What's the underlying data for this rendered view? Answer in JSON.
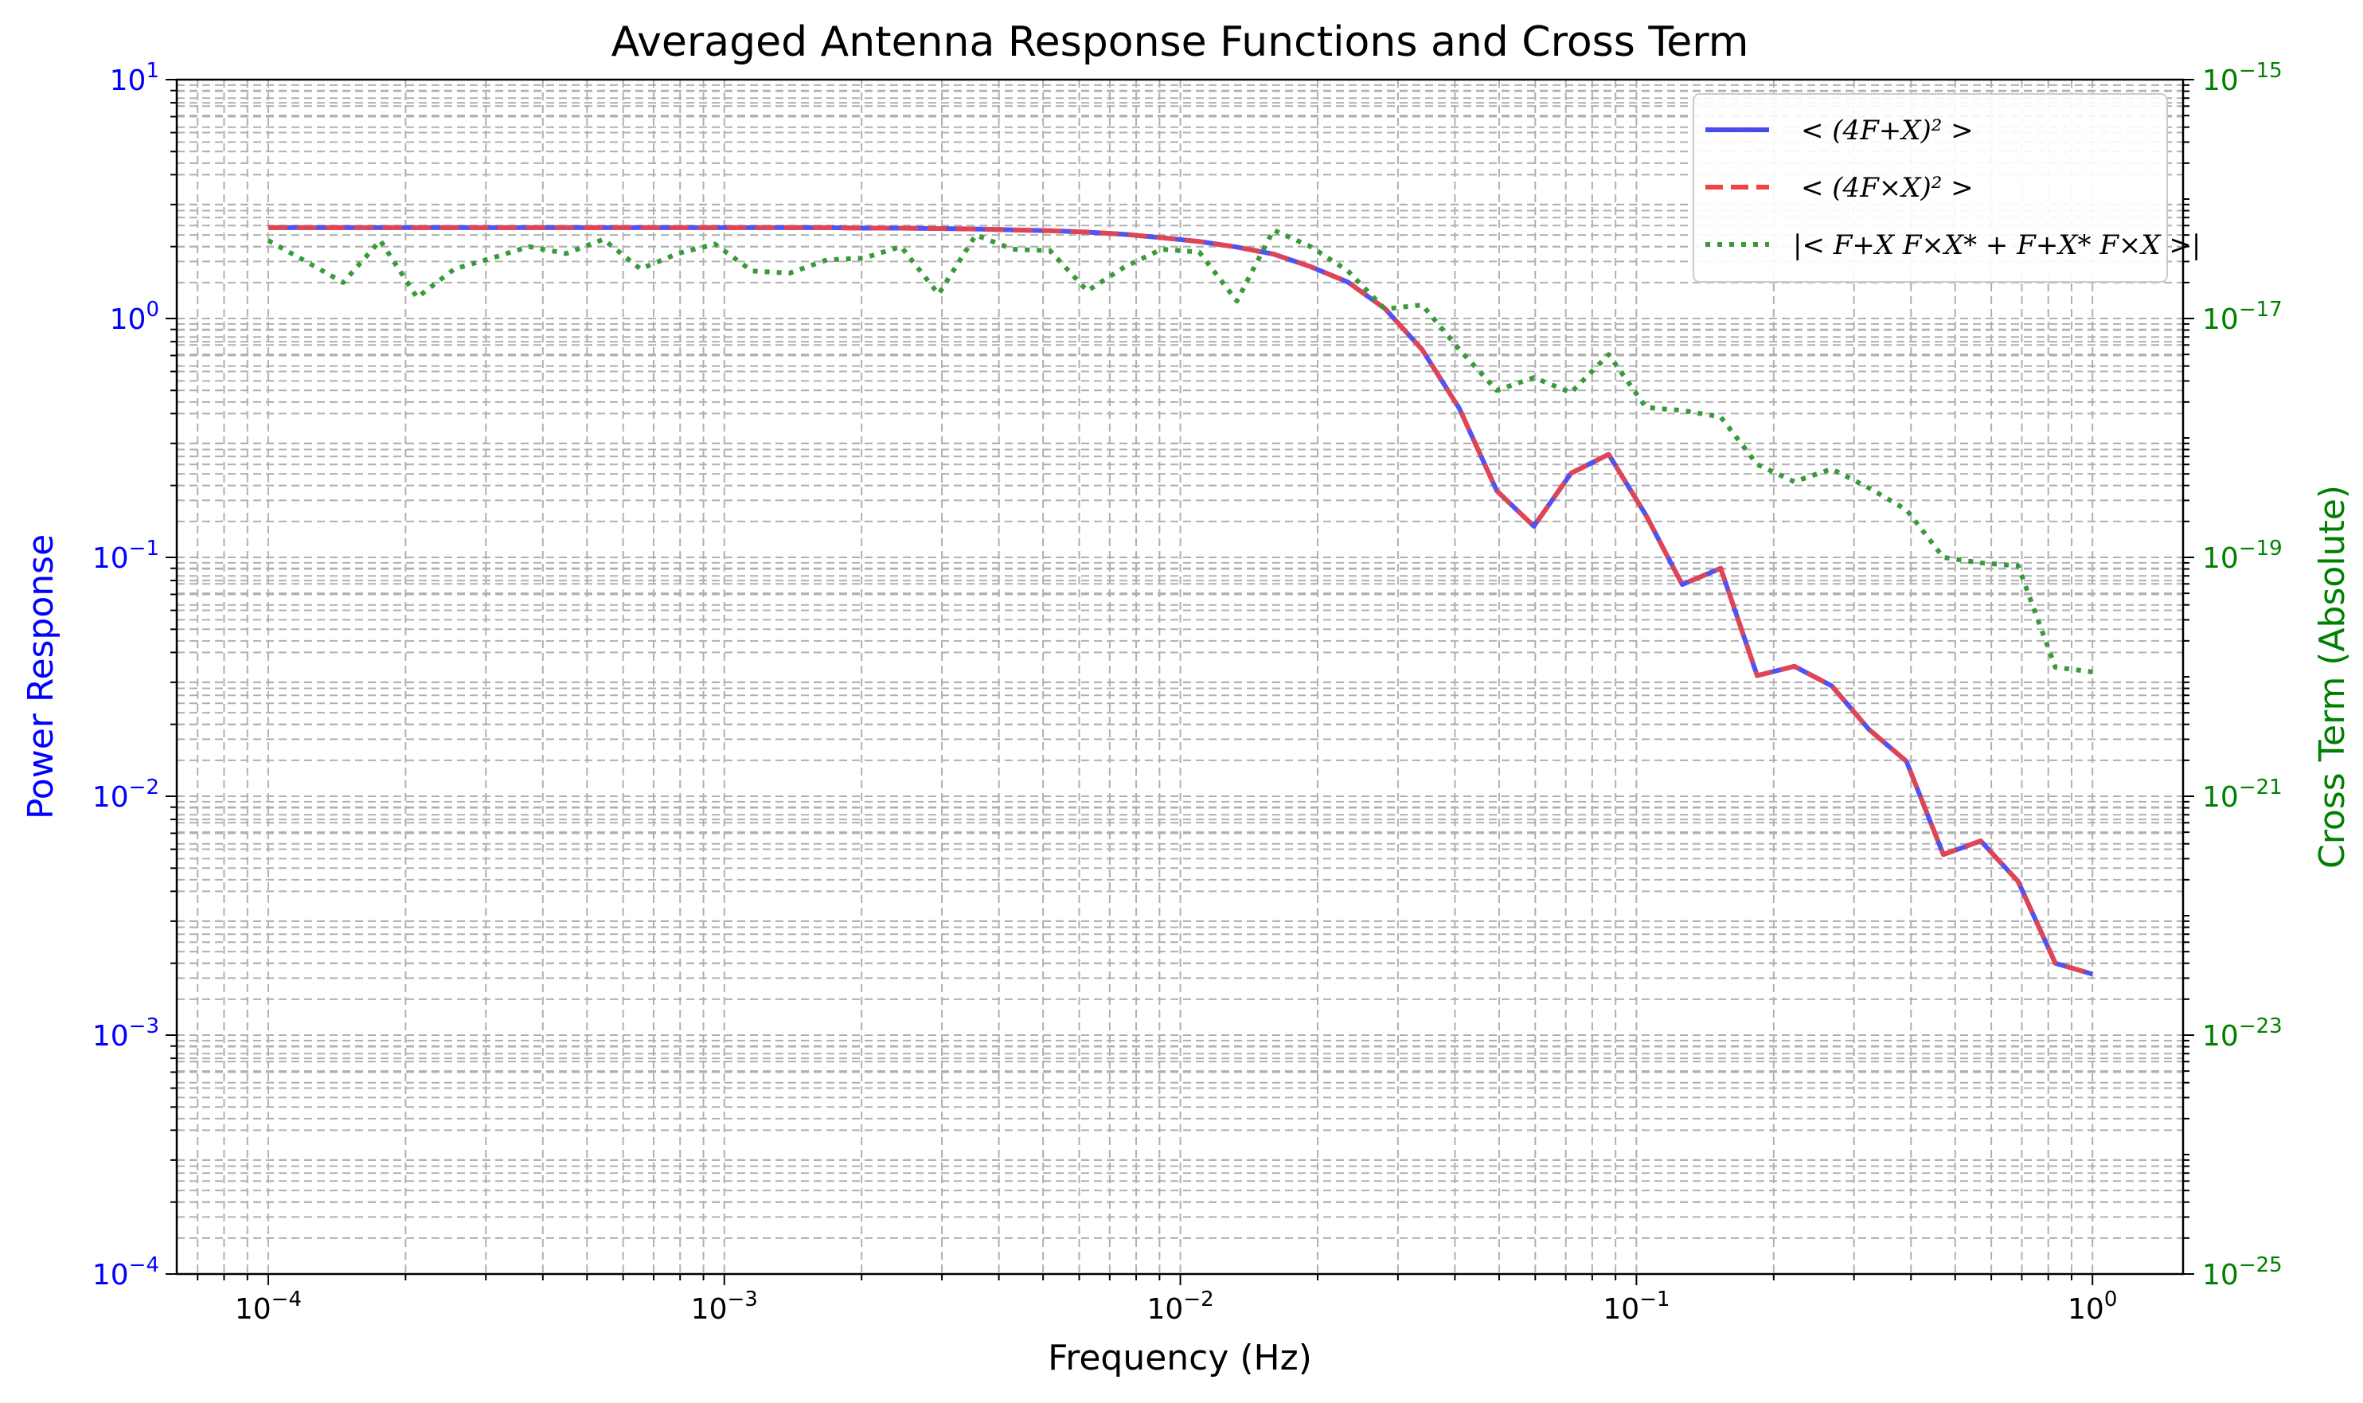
{
  "chart_data": {
    "type": "line",
    "title": "Averaged Antenna Response Functions and Cross Term",
    "xlabel": "Frequency (Hz)",
    "ylabel": "Power Response",
    "y2label": "Cross Term (Absolute)",
    "xscale": "log",
    "yscale": "log",
    "y2scale": "log",
    "xlim": [
      6.3e-05,
      1.58
    ],
    "ylim": [
      0.0001,
      10
    ],
    "y2lim": [
      1e-25,
      1e-15
    ],
    "grid": "major and minor, dashed",
    "legend_position": "top-right",
    "colors": {
      "left_axis": "#0000ff",
      "right_axis": "#008000",
      "plus_series": "#4a4af0",
      "cross_series": "#ee4444",
      "cross_term_series": "#3a9a3a",
      "grid": "#b0b0b0"
    },
    "x_ticks": [
      {
        "base": "10",
        "exp": "−4"
      },
      {
        "base": "10",
        "exp": "−3"
      },
      {
        "base": "10",
        "exp": "−2"
      },
      {
        "base": "10",
        "exp": "−1"
      },
      {
        "base": "10",
        "exp": "0"
      }
    ],
    "y_ticks": [
      {
        "base": "10",
        "exp": "−4"
      },
      {
        "base": "10",
        "exp": "−3"
      },
      {
        "base": "10",
        "exp": "−2"
      },
      {
        "base": "10",
        "exp": "−1"
      },
      {
        "base": "10",
        "exp": "0"
      },
      {
        "base": "10",
        "exp": "1"
      }
    ],
    "y2_ticks": [
      {
        "base": "10",
        "exp": "−25"
      },
      {
        "base": "10",
        "exp": "−23"
      },
      {
        "base": "10",
        "exp": "−21"
      },
      {
        "base": "10",
        "exp": "−19"
      },
      {
        "base": "10",
        "exp": "−17"
      },
      {
        "base": "10",
        "exp": "−15"
      }
    ],
    "x": [
      0.0001,
      0.000121,
      0.000146,
      0.000176,
      0.000212,
      0.000256,
      0.000309,
      0.000373,
      0.00045,
      0.000543,
      0.000655,
      0.000791,
      0.000954,
      0.00115,
      0.00139,
      0.00168,
      0.00202,
      0.00244,
      0.00295,
      0.00356,
      0.00429,
      0.00518,
      0.00625,
      0.00754,
      0.0091,
      0.011,
      0.0133,
      0.016,
      0.0193,
      0.0233,
      0.0281,
      0.0339,
      0.0409,
      0.0494,
      0.0596,
      0.0719,
      0.0869,
      0.105,
      0.126,
      0.153,
      0.184,
      0.222,
      0.268,
      0.324,
      0.391,
      0.471,
      0.569,
      0.687,
      0.829,
      1.0
    ],
    "series": [
      {
        "name": "< (4F_X^+)^2 >",
        "axis": "left",
        "style": "solid",
        "legend_label": "< (4F+X)² >",
        "values": [
          2.4,
          2.4,
          2.4,
          2.4,
          2.4,
          2.4,
          2.4,
          2.4,
          2.4,
          2.4,
          2.4,
          2.4,
          2.4,
          2.4,
          2.4,
          2.4,
          2.39,
          2.39,
          2.38,
          2.37,
          2.35,
          2.33,
          2.3,
          2.25,
          2.18,
          2.1,
          1.99,
          1.86,
          1.65,
          1.42,
          1.1,
          0.74,
          0.42,
          0.19,
          0.135,
          0.225,
          0.27,
          0.15,
          0.077,
          0.09,
          0.032,
          0.035,
          0.029,
          0.019,
          0.014,
          0.0057,
          0.0065,
          0.0044,
          0.002,
          0.0018
        ]
      },
      {
        "name": "< (4F_X^x)^2 >",
        "axis": "left",
        "style": "dashed",
        "legend_label": "< (4F×X)² >",
        "values": [
          2.4,
          2.4,
          2.4,
          2.4,
          2.4,
          2.4,
          2.4,
          2.4,
          2.4,
          2.4,
          2.4,
          2.4,
          2.4,
          2.4,
          2.4,
          2.4,
          2.39,
          2.39,
          2.38,
          2.37,
          2.35,
          2.33,
          2.3,
          2.25,
          2.18,
          2.1,
          1.99,
          1.86,
          1.65,
          1.42,
          1.1,
          0.74,
          0.42,
          0.19,
          0.135,
          0.225,
          0.27,
          0.15,
          0.077,
          0.09,
          0.032,
          0.035,
          0.029,
          0.019,
          0.014,
          0.0057,
          0.0065,
          0.0044,
          0.002,
          0.0018
        ]
      },
      {
        "name": "|< F_X^+ F_X^x* + F_X^+* F_X^x >|",
        "axis": "right",
        "style": "dotted",
        "legend_label": "|< F+X F×X* + F+X* F×X >|",
        "values": [
          4.5e-17,
          3e-17,
          2e-17,
          4.5e-17,
          1.5e-17,
          2.6e-17,
          3.2e-17,
          4e-17,
          3.5e-17,
          4.6e-17,
          2.6e-17,
          3.5e-17,
          4.2e-17,
          2.5e-17,
          2.4e-17,
          3.1e-17,
          3.2e-17,
          4e-17,
          1.6e-17,
          5e-17,
          3.8e-17,
          3.7e-17,
          1.7e-17,
          2.7e-17,
          3.8e-17,
          3.6e-17,
          1.4e-17,
          5.5e-17,
          4e-17,
          2.5e-17,
          1.2e-17,
          1.3e-17,
          5.5e-18,
          2.5e-18,
          3.2e-18,
          2.4e-18,
          5e-18,
          1.8e-18,
          1.7e-18,
          1.5e-18,
          6e-19,
          4.3e-19,
          5.5e-19,
          3.8e-19,
          2.5e-19,
          1e-19,
          9e-20,
          8.5e-20,
          1.2e-20,
          1.1e-20
        ]
      }
    ]
  }
}
